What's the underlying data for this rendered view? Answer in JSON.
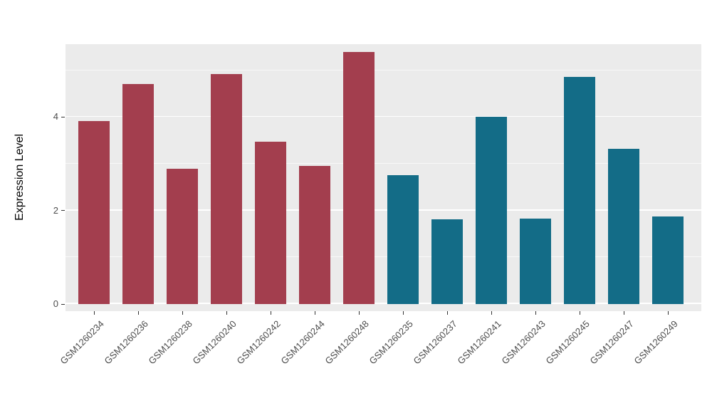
{
  "chart_data": {
    "type": "bar",
    "title": "",
    "xlabel": "",
    "ylabel": "Expression Level",
    "ylim": [
      0,
      5.6
    ],
    "yticks": [
      0,
      2,
      4
    ],
    "minor_gridlines": [
      1,
      3,
      5
    ],
    "grid": "on",
    "legend": "none",
    "categories": [
      "GSM1260234",
      "GSM1260236",
      "GSM1260238",
      "GSM1260240",
      "GSM1260242",
      "GSM1260244",
      "GSM1260248",
      "GSM1260235",
      "GSM1260237",
      "GSM1260241",
      "GSM1260243",
      "GSM1260245",
      "GSM1260247",
      "GSM1260249"
    ],
    "values": [
      3.91,
      4.71,
      2.89,
      4.92,
      3.47,
      2.95,
      5.39,
      2.76,
      1.82,
      4.01,
      1.83,
      4.86,
      3.32,
      1.88
    ],
    "color_groups": [
      0,
      0,
      0,
      0,
      0,
      0,
      0,
      1,
      1,
      1,
      1,
      1,
      1,
      1
    ],
    "palette": [
      "#A33E4E",
      "#136C87"
    ]
  },
  "style": {
    "panel_background": "#EBEBEB",
    "grid_color": "#FFFFFF",
    "axis_text_color": "#4D4D4D",
    "axis_title_color": "#000000",
    "page_background": "#FFFFFF"
  }
}
